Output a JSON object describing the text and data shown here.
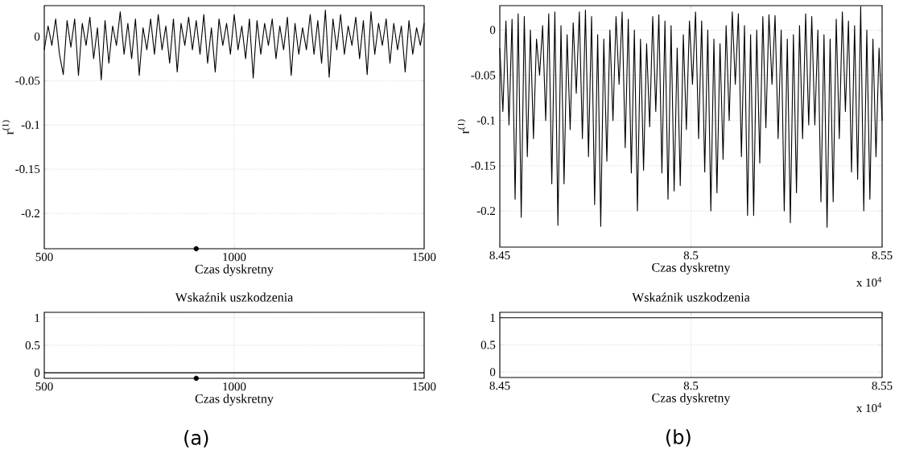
{
  "chart_data": [
    {
      "type": "line",
      "xlabel": "Czas dyskretny",
      "ylabel": "r$^{(1)}$",
      "grid": true,
      "xlim": [
        500,
        1500
      ],
      "xticks": [
        500,
        1000,
        1500
      ],
      "ylim": [
        -0.24,
        0.035
      ],
      "yticks": [
        -0.2,
        -0.15,
        -0.1,
        -0.05,
        0
      ],
      "series": [
        {
          "color": "#000000",
          "x": [
            500,
            510,
            520,
            530,
            540,
            550,
            560,
            570,
            580,
            590,
            600,
            610,
            620,
            630,
            640,
            650,
            660,
            670,
            680,
            690,
            700,
            710,
            720,
            730,
            740,
            750,
            760,
            770,
            780,
            790,
            800,
            810,
            820,
            830,
            840,
            850,
            860,
            870,
            880,
            890,
            900,
            910,
            920,
            930,
            940,
            950,
            960,
            970,
            980,
            990,
            1000,
            1010,
            1020,
            1030,
            1040,
            1050,
            1060,
            1070,
            1080,
            1090,
            1100,
            1110,
            1120,
            1130,
            1140,
            1150,
            1160,
            1170,
            1180,
            1190,
            1200,
            1210,
            1220,
            1230,
            1240,
            1250,
            1260,
            1270,
            1280,
            1290,
            1300,
            1310,
            1320,
            1330,
            1340,
            1350,
            1360,
            1370,
            1380,
            1390,
            1400,
            1410,
            1420,
            1430,
            1440,
            1450,
            1460,
            1470,
            1480,
            1490,
            1500
          ],
          "values": [
            -0.015,
            0.012,
            -0.01,
            0.02,
            -0.02,
            -0.043,
            0.018,
            -0.012,
            0.02,
            -0.044,
            0.015,
            -0.01,
            0.022,
            -0.025,
            0.01,
            -0.049,
            0.018,
            -0.03,
            0.012,
            -0.01,
            0.028,
            -0.02,
            0.015,
            -0.025,
            0.02,
            -0.044,
            0.01,
            -0.015,
            0.02,
            -0.02,
            0.025,
            -0.015,
            0.012,
            -0.03,
            0.02,
            -0.04,
            0.015,
            -0.01,
            0.022,
            -0.015,
            0.018,
            -0.02,
            0.025,
            -0.03,
            0.01,
            -0.04,
            0.02,
            -0.01,
            0.015,
            -0.02,
            0.025,
            -0.015,
            0.012,
            -0.025,
            0.02,
            -0.047,
            0.018,
            -0.02,
            0.015,
            -0.01,
            0.02,
            -0.025,
            0.012,
            -0.015,
            0.022,
            -0.044,
            0.015,
            -0.02,
            0.01,
            -0.015,
            0.025,
            -0.02,
            0.018,
            -0.03,
            0.03,
            -0.046,
            0.02,
            -0.015,
            0.025,
            -0.02,
            0.012,
            -0.01,
            0.022,
            -0.025,
            0.018,
            -0.043,
            0.028,
            -0.02,
            0.015,
            -0.01,
            0.02,
            -0.03,
            0.015,
            -0.015,
            0.012,
            -0.04,
            0.018,
            -0.02,
            0.01,
            -0.01,
            0.015
          ]
        },
        {
          "type": "scatter",
          "marker": "circle",
          "color": "#000000",
          "x": [
            900
          ],
          "values": [
            -0.24
          ]
        }
      ]
    },
    {
      "type": "line",
      "xlabel": "Czas dyskretny",
      "ylabel": "r$^{(1)}$",
      "grid": true,
      "xlim": [
        8.45,
        8.55
      ],
      "xticks": [
        8.45,
        8.5,
        8.55
      ],
      "ylim": [
        -0.24,
        0.027
      ],
      "yticks": [
        -0.2,
        -0.15,
        -0.1,
        -0.05,
        0
      ],
      "annotations": [
        "x 10$^{4}$"
      ],
      "series": [
        {
          "color": "#000000",
          "x": [
            8.45,
            8.4508,
            8.4516,
            8.4524,
            8.4532,
            8.454,
            8.4548,
            8.4556,
            8.4564,
            8.4572,
            8.458,
            8.4588,
            8.4596,
            8.4604,
            8.4612,
            8.462,
            8.4628,
            8.4636,
            8.4644,
            8.4652,
            8.466,
            8.4668,
            8.4676,
            8.4684,
            8.4692,
            8.47,
            8.4708,
            8.4716,
            8.4724,
            8.4732,
            8.474,
            8.4748,
            8.4756,
            8.4764,
            8.4772,
            8.478,
            8.4788,
            8.4796,
            8.4804,
            8.4812,
            8.482,
            8.4828,
            8.4836,
            8.4844,
            8.4852,
            8.486,
            8.4868,
            8.4876,
            8.4884,
            8.4892,
            8.49,
            8.4908,
            8.4916,
            8.4924,
            8.4932,
            8.494,
            8.4948,
            8.4956,
            8.4964,
            8.4972,
            8.498,
            8.4988,
            8.4996,
            8.5004,
            8.5012,
            8.502,
            8.5028,
            8.5036,
            8.5044,
            8.5052,
            8.506,
            8.5068,
            8.5076,
            8.5084,
            8.5092,
            8.51,
            8.5108,
            8.5116,
            8.5124,
            8.5132,
            8.514,
            8.5148,
            8.5156,
            8.5164,
            8.5172,
            8.518,
            8.5188,
            8.5196,
            8.5204,
            8.5212,
            8.522,
            8.5228,
            8.5236,
            8.5244,
            8.5252,
            8.526,
            8.5268,
            8.5276,
            8.5284,
            8.5292,
            8.53,
            8.5308,
            8.5316,
            8.5324,
            8.5332,
            8.534,
            8.5348,
            8.5356,
            8.5364,
            8.5372,
            8.538,
            8.5388,
            8.5396,
            8.5404,
            8.5412,
            8.542,
            8.5428,
            8.5436,
            8.5444,
            8.5452,
            8.546,
            8.5468,
            8.5476,
            8.5484,
            8.5492,
            8.55
          ],
          "values": [
            -0.02,
            -0.09,
            0.01,
            -0.105,
            0.012,
            -0.187,
            0.018,
            -0.207,
            0.015,
            -0.14,
            0.0,
            -0.12,
            -0.01,
            -0.05,
            0.005,
            -0.1,
            0.018,
            -0.17,
            0.02,
            -0.216,
            0.005,
            -0.17,
            -0.005,
            -0.11,
            0.008,
            -0.07,
            0.02,
            -0.12,
            0.022,
            -0.14,
            0.015,
            -0.193,
            -0.005,
            -0.217,
            -0.01,
            -0.145,
            0.0,
            -0.1,
            0.015,
            -0.06,
            0.02,
            -0.13,
            0.012,
            -0.158,
            0.0,
            -0.2,
            -0.01,
            -0.155,
            -0.015,
            -0.107,
            0.015,
            -0.09,
            0.017,
            -0.158,
            0.01,
            -0.187,
            0.005,
            -0.178,
            -0.02,
            -0.172,
            -0.005,
            -0.11,
            0.01,
            -0.06,
            0.02,
            -0.12,
            0.01,
            -0.157,
            0.0,
            -0.2,
            -0.01,
            -0.18,
            -0.015,
            -0.143,
            0.005,
            -0.1,
            0.02,
            -0.06,
            0.018,
            -0.14,
            0.005,
            -0.205,
            -0.005,
            -0.205,
            0.0,
            -0.147,
            0.015,
            -0.108,
            0.017,
            -0.06,
            0.016,
            -0.12,
            0.0,
            -0.2,
            -0.01,
            -0.213,
            -0.005,
            -0.18,
            0.005,
            -0.12,
            0.018,
            -0.105,
            0.015,
            -0.105,
            0.0,
            -0.19,
            -0.005,
            -0.218,
            -0.01,
            -0.19,
            0.012,
            -0.12,
            0.02,
            -0.09,
            0.01,
            -0.157,
            0.005,
            -0.165,
            0.026,
            -0.2,
            0.0,
            -0.187,
            -0.01,
            -0.14,
            -0.02,
            -0.1
          ]
        }
      ]
    },
    {
      "type": "line",
      "title": "Wskaźnik uszkodzenia",
      "xlabel": "Czas dyskretny",
      "grid": true,
      "xlim": [
        500,
        1500
      ],
      "xticks": [
        500,
        1000,
        1500
      ],
      "ylim": [
        -0.1,
        1.1
      ],
      "yticks": [
        0,
        0.5,
        1
      ],
      "annotations": [
        "(a)"
      ],
      "series": [
        {
          "color": "#000000",
          "x": [
            500,
            1500
          ],
          "values": [
            0,
            0
          ]
        },
        {
          "type": "scatter",
          "marker": "circle",
          "color": "#000000",
          "x": [
            900
          ],
          "values": [
            -0.1
          ]
        }
      ]
    },
    {
      "type": "line",
      "title": "Wskaźnik uszkodzenia",
      "xlabel": "Czas dyskretny",
      "grid": true,
      "xlim": [
        8.45,
        8.55
      ],
      "xticks": [
        8.45,
        8.5,
        8.55
      ],
      "ylim": [
        -0.1,
        1.1
      ],
      "yticks": [
        0,
        0.5,
        1
      ],
      "annotations": [
        "x 10$^{4}$",
        "(b)"
      ],
      "series": [
        {
          "color": "#000000",
          "x": [
            8.45,
            8.55
          ],
          "values": [
            1,
            1
          ]
        }
      ]
    }
  ]
}
